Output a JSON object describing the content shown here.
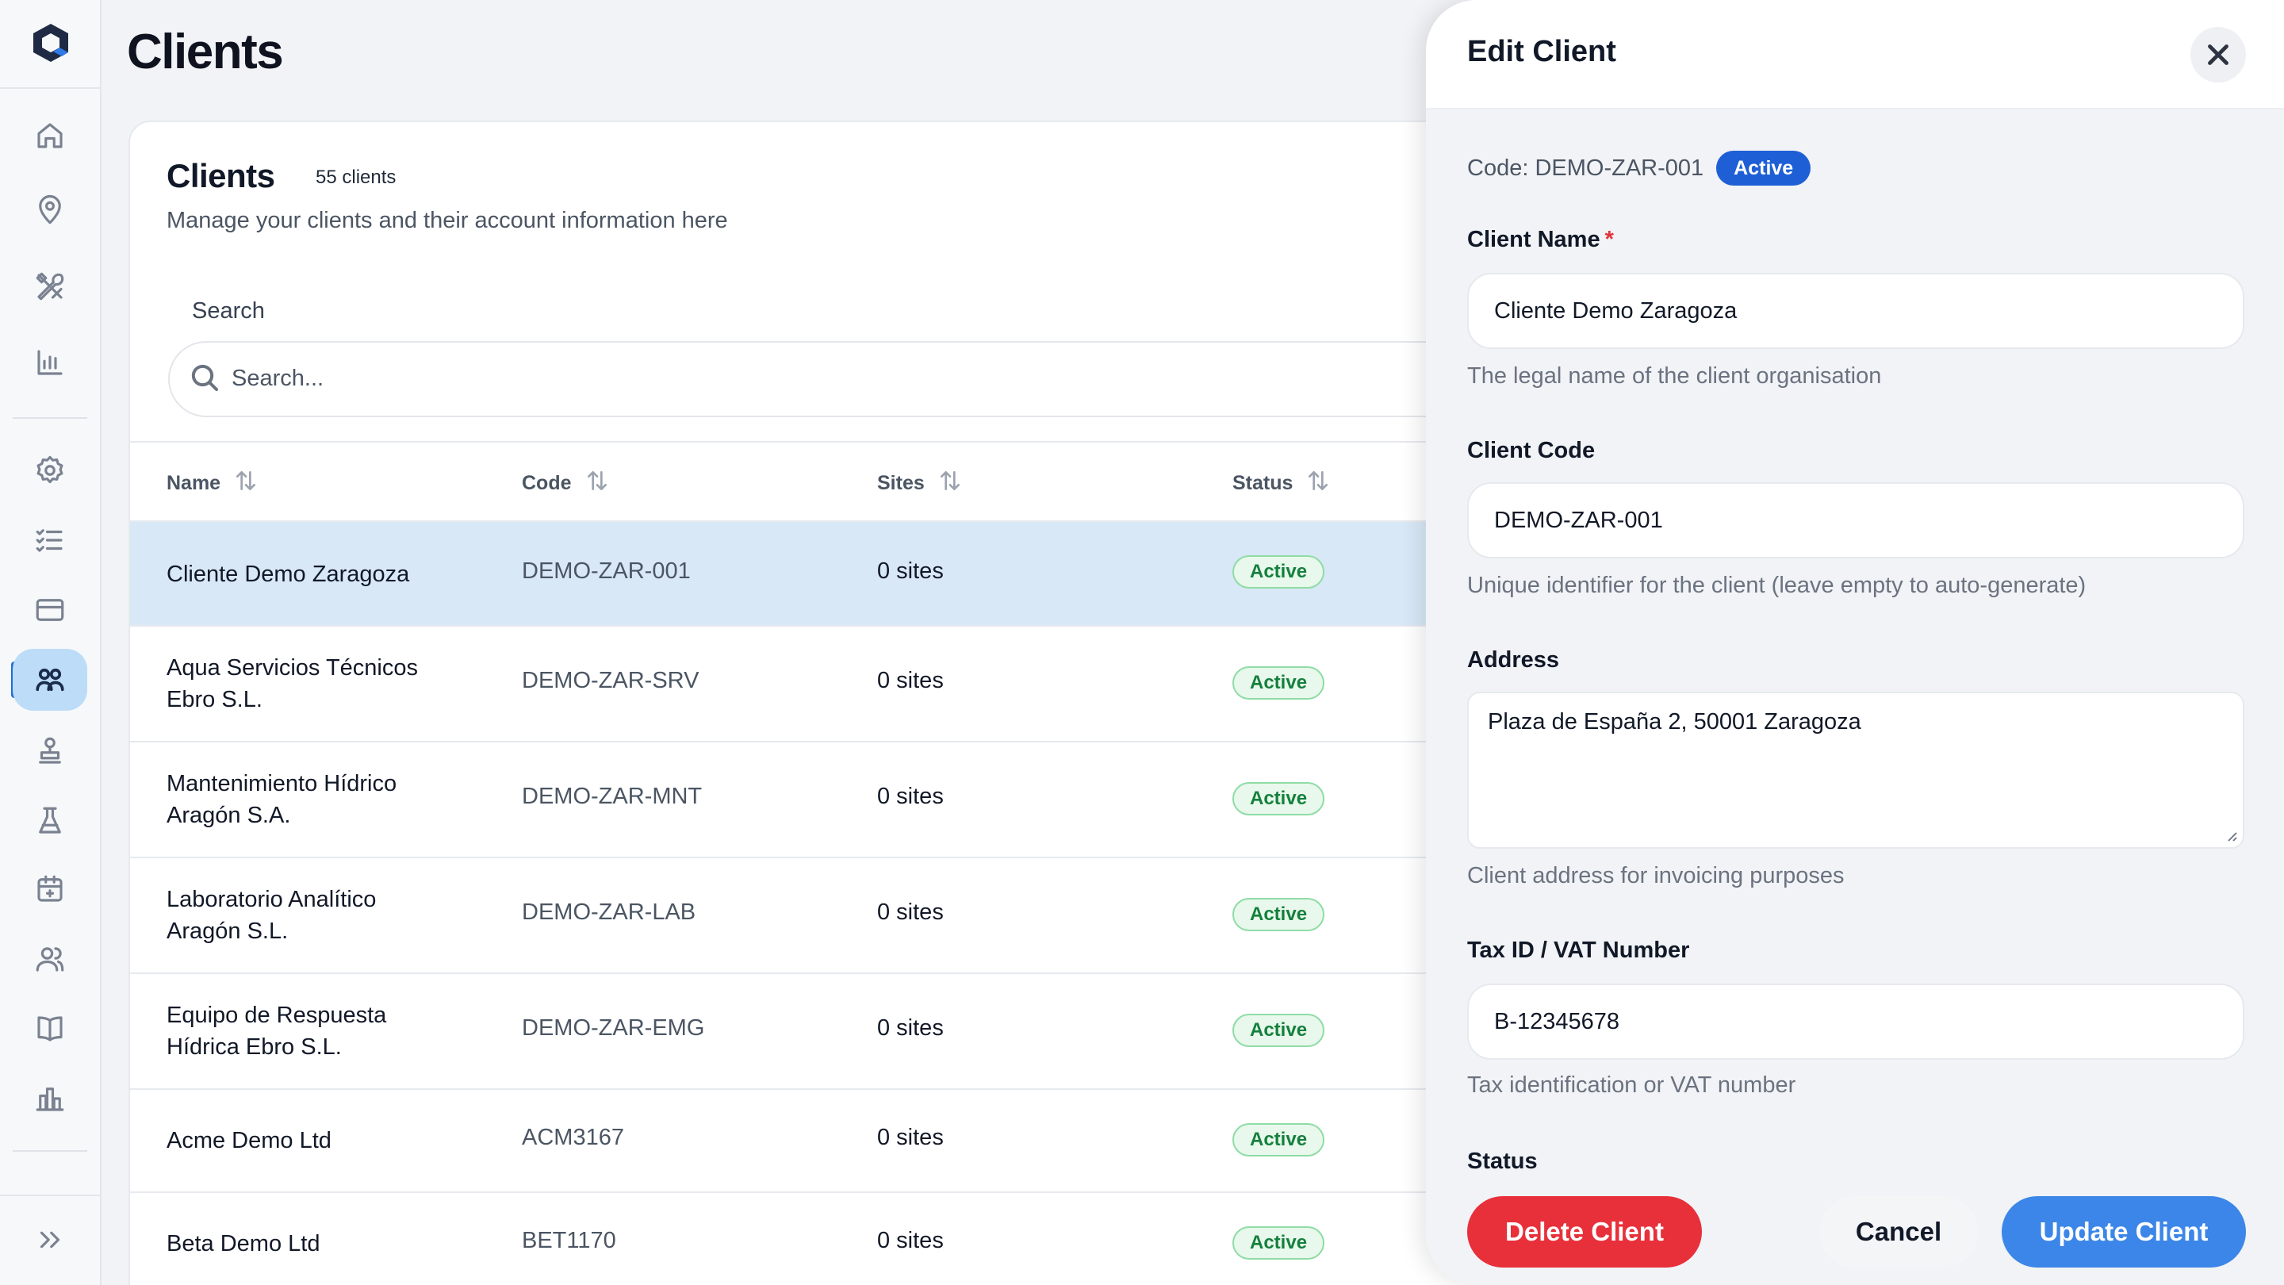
{
  "page": {
    "title": "Clients"
  },
  "sidebar": {
    "items": [
      {
        "name": "home-icon"
      },
      {
        "name": "location-pin-icon"
      },
      {
        "name": "tools-icon"
      },
      {
        "name": "bar-chart-icon"
      },
      {
        "name": "settings-gear-icon"
      },
      {
        "name": "checklist-icon"
      },
      {
        "name": "credit-card-icon"
      },
      {
        "name": "clients-icon",
        "active": true
      },
      {
        "name": "stamp-icon"
      },
      {
        "name": "lab-flask-icon"
      },
      {
        "name": "calendar-icon"
      },
      {
        "name": "users-icon"
      },
      {
        "name": "book-icon"
      },
      {
        "name": "buildings-chart-icon"
      }
    ],
    "expand_icon": "chevrons-right-icon"
  },
  "card": {
    "title": "Clients",
    "count": "55 clients",
    "subtitle": "Manage your clients and their account information here",
    "search_label": "Search",
    "search_placeholder": "Search...",
    "columns": [
      "Name",
      "Code",
      "Sites",
      "Status"
    ]
  },
  "clients": [
    {
      "name": "Cliente Demo Zaragoza",
      "code": "DEMO-ZAR-001",
      "sites": "0 sites",
      "status": "Active"
    },
    {
      "name": "Aqua Servicios Técnicos Ebro S.L.",
      "code": "DEMO-ZAR-SRV",
      "sites": "0 sites",
      "status": "Active"
    },
    {
      "name": "Mantenimiento Hídrico Aragón S.A.",
      "code": "DEMO-ZAR-MNT",
      "sites": "0 sites",
      "status": "Active"
    },
    {
      "name": "Laboratorio Analítico Aragón S.L.",
      "code": "DEMO-ZAR-LAB",
      "sites": "0 sites",
      "status": "Active"
    },
    {
      "name": "Equipo de Respuesta Hídrica Ebro S.L.",
      "code": "DEMO-ZAR-EMG",
      "sites": "0 sites",
      "status": "Active"
    },
    {
      "name": "Acme Demo Ltd",
      "code": "ACM3167",
      "sites": "0 sites",
      "status": "Active"
    },
    {
      "name": "Beta Demo Ltd",
      "code": "BET1170",
      "sites": "0 sites",
      "status": "Active"
    }
  ],
  "drawer": {
    "title": "Edit Client",
    "code_text": "Code: DEMO-ZAR-001",
    "code_status": "Active",
    "client_name_label": "Client Name",
    "required_mark": "*",
    "client_name_value": "Cliente Demo Zaragoza",
    "client_name_help": "The legal name of the client organisation",
    "client_code_label": "Client Code",
    "client_code_value": "DEMO-ZAR-001",
    "client_code_help": "Unique identifier for the client (leave empty to auto-generate)",
    "address_label": "Address",
    "address_value": "Plaza de España 2, 50001 Zaragoza",
    "address_help": "Client address for invoicing purposes",
    "tax_label": "Tax ID / VAT Number",
    "tax_value": "B-12345678",
    "tax_help": "Tax identification or VAT number",
    "status_label": "Status",
    "delete_label": "Delete Client",
    "cancel_label": "Cancel",
    "update_label": "Update Client"
  },
  "colors": {
    "accent": "#1e5fd6",
    "danger": "#e8303a",
    "success": "#15803d",
    "selected_row": "#d8e8f6"
  }
}
